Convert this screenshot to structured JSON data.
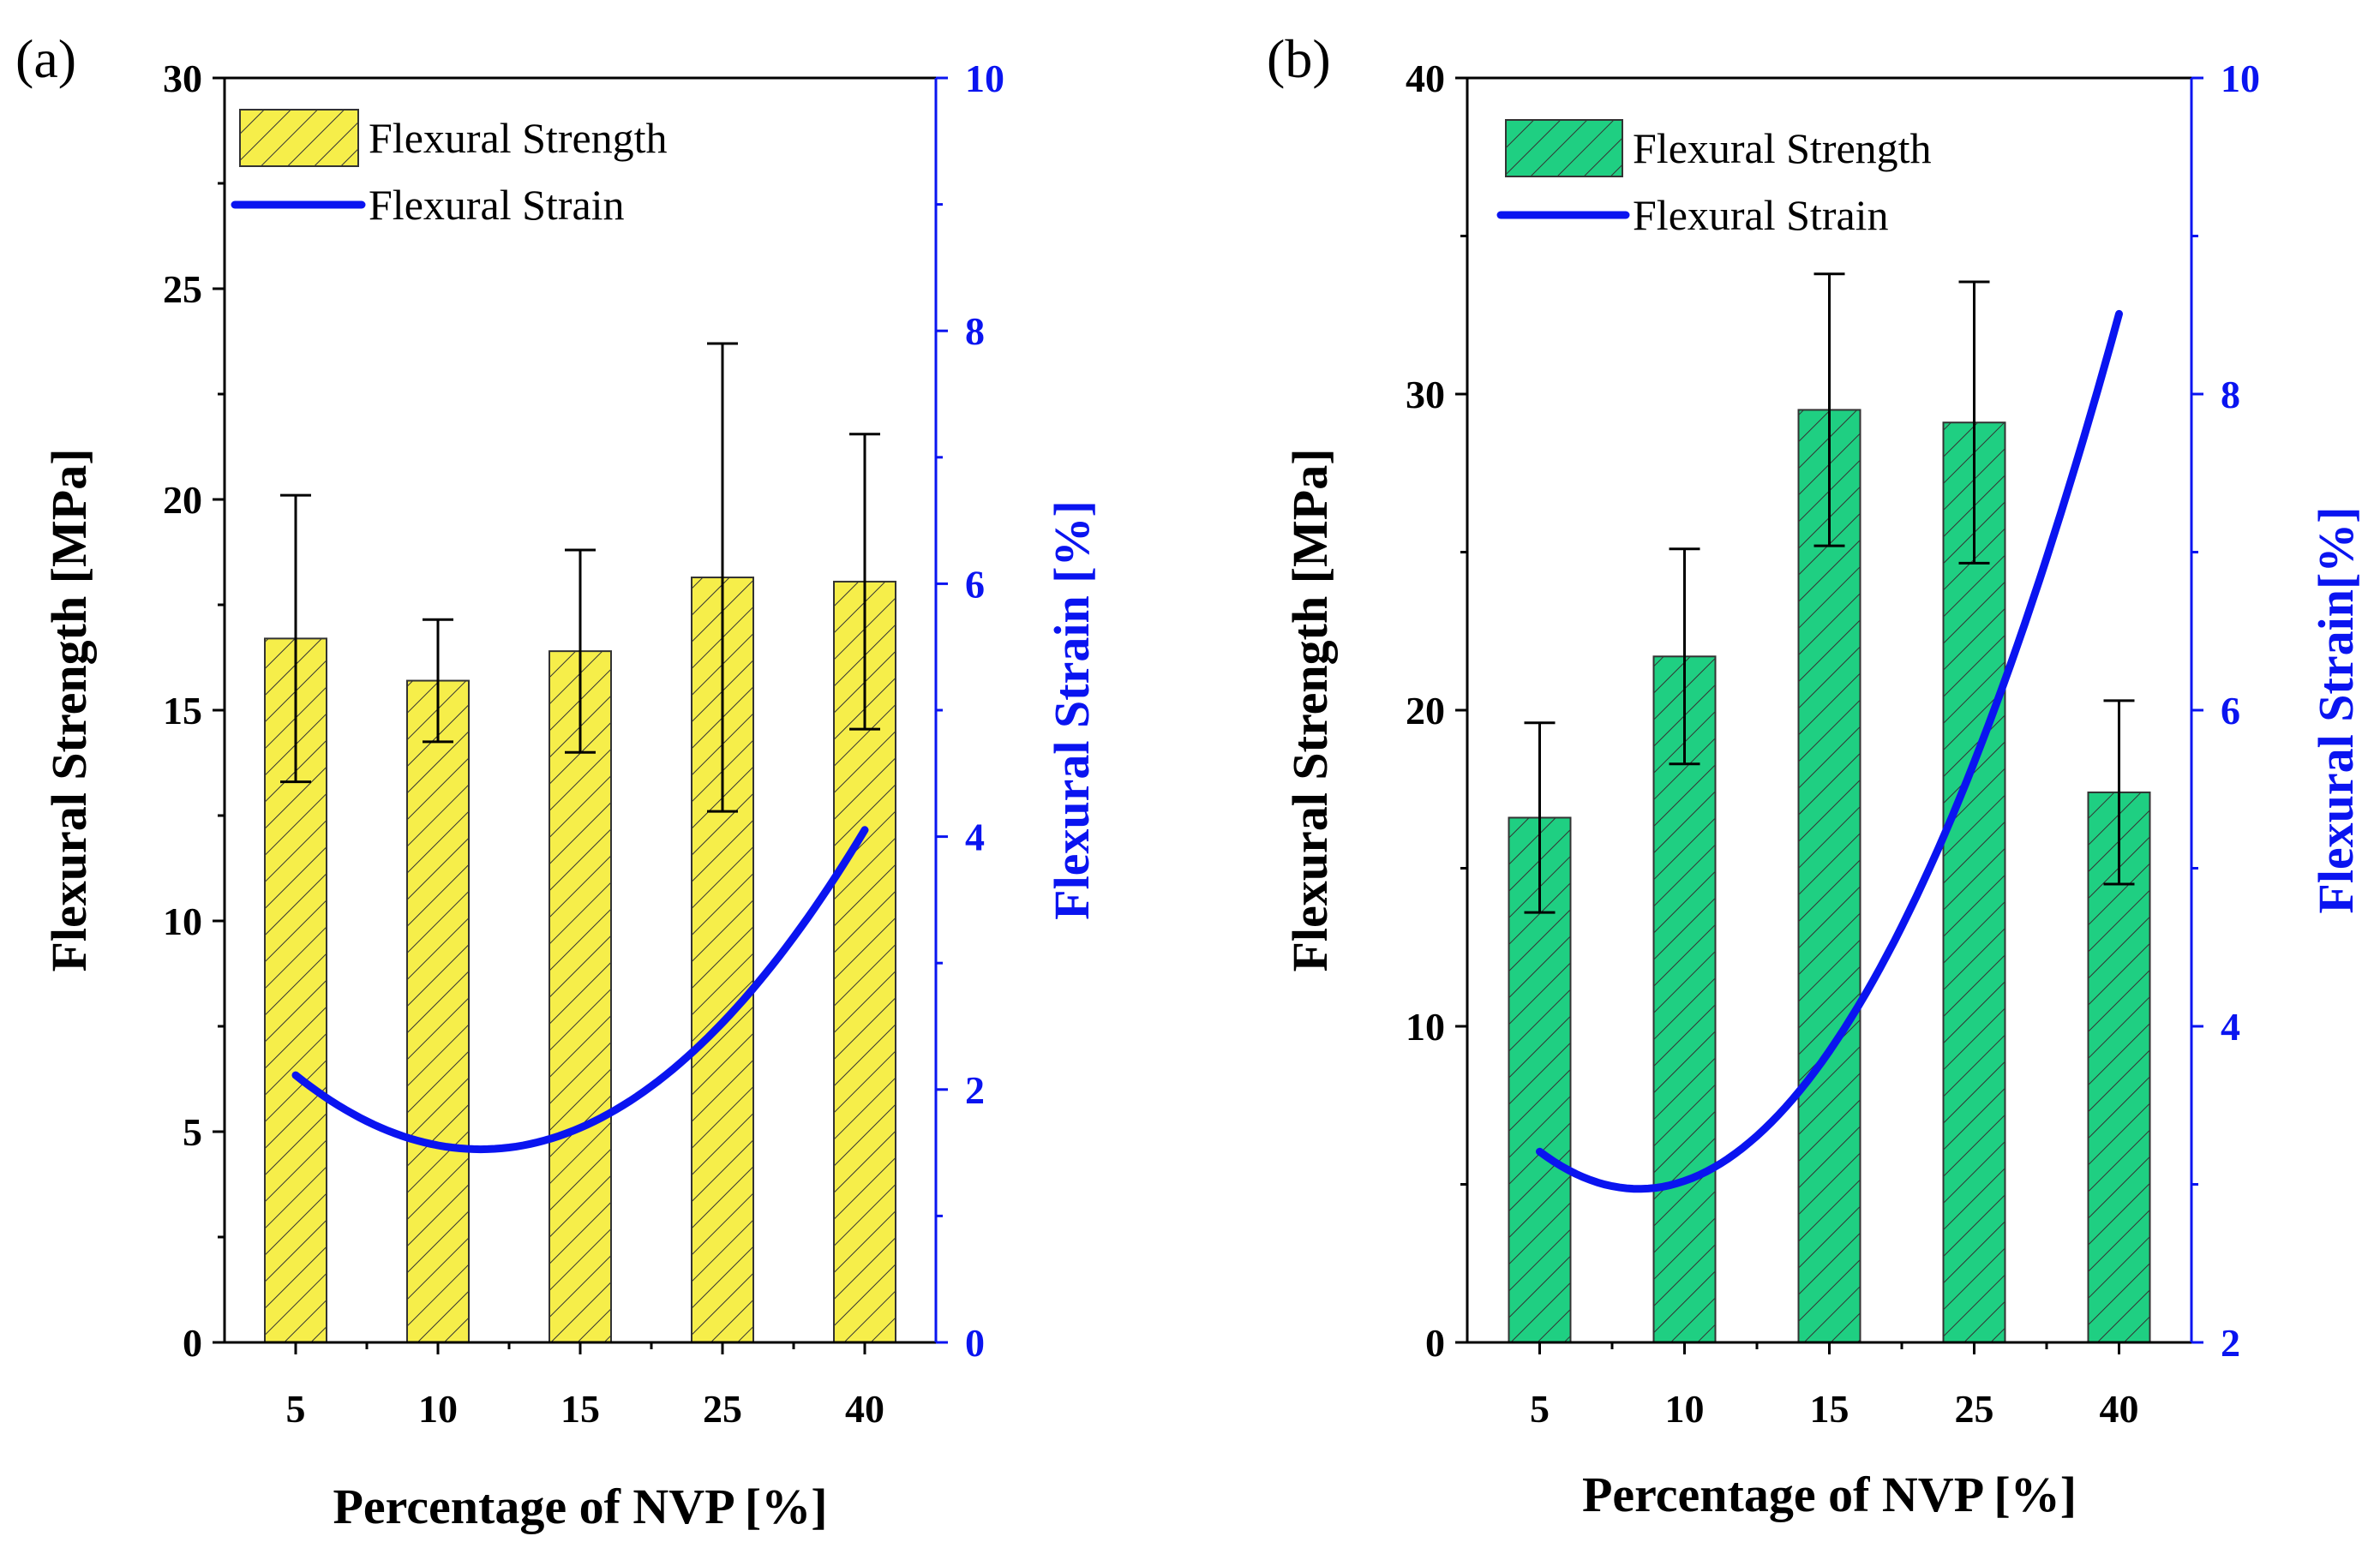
{
  "chart_data": [
    {
      "type": "bar",
      "panel_label": "(a)",
      "categories": [
        "5",
        "10",
        "15",
        "25",
        "40"
      ],
      "series": [
        {
          "name": "Flexural Strength",
          "axis": "left",
          "kind": "bar",
          "values": [
            16.7,
            15.7,
            16.4,
            18.15,
            18.05
          ],
          "errors": [
            3.4,
            1.45,
            2.4,
            5.55,
            3.5
          ]
        },
        {
          "name": "Flexural Strain",
          "axis": "right",
          "kind": "line",
          "x": [
            5,
            10,
            15,
            25,
            40
          ],
          "values": [
            2.1,
            1.6,
            1.65,
            2.55,
            4.05
          ]
        }
      ],
      "xlabel": "Percentage of NVP [%]",
      "ylabel": "Flexural Strength [MPa]",
      "y2label": "Flexural Strain [%]",
      "ylim": [
        0,
        30
      ],
      "y2lim": [
        0,
        10
      ],
      "yticks": [
        "0",
        "5",
        "10",
        "15",
        "20",
        "25",
        "30"
      ],
      "y2ticks": [
        "0",
        "2",
        "4",
        "6",
        "8",
        "10"
      ],
      "legend": [
        "Flexural Strength",
        "Flexural Strain"
      ],
      "legend_position": "top-left",
      "colors": {
        "bar_fill": "#f6ee4a",
        "line": "#0a14f0",
        "right_axis": "#0a14f0"
      }
    },
    {
      "type": "bar",
      "panel_label": "(b)",
      "categories": [
        "5",
        "10",
        "15",
        "25",
        "40"
      ],
      "series": [
        {
          "name": "Flexural Strength",
          "axis": "left",
          "kind": "bar",
          "values": [
            16.6,
            21.7,
            29.5,
            29.1,
            17.4
          ],
          "errors": [
            3.0,
            3.4,
            4.3,
            4.45,
            2.9
          ]
        },
        {
          "name": "Flexural Strain",
          "axis": "right",
          "kind": "line",
          "x": [
            5,
            10,
            15,
            25,
            40
          ],
          "values": [
            3.2,
            3.05,
            3.8,
            5.7,
            8.5
          ]
        }
      ],
      "xlabel": "Percentage of NVP [%]",
      "ylabel": "Flexural Strength [MPa]",
      "y2label": "Flexural Strain[%]",
      "ylim": [
        0,
        40
      ],
      "y2lim": [
        2,
        10
      ],
      "yticks": [
        "0",
        "10",
        "20",
        "30",
        "40"
      ],
      "y2ticks": [
        "2",
        "4",
        "6",
        "8",
        "10"
      ],
      "legend": [
        "Flexural Strength",
        "Flexural Strain"
      ],
      "legend_position": "top-left",
      "colors": {
        "bar_fill": "#1fcf82",
        "line": "#0a14f0",
        "right_axis": "#0a14f0"
      }
    }
  ]
}
